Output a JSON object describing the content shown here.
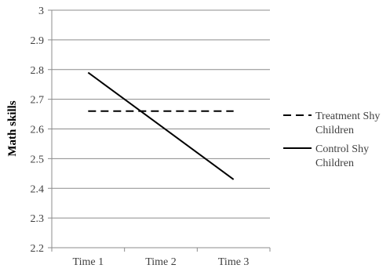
{
  "chart_data": {
    "type": "line",
    "categories": [
      "Time 1",
      "Time 2",
      "Time 3"
    ],
    "series": [
      {
        "name": "Treatment Shy Children",
        "legend_lines": [
          "Treatment Shy",
          "Children"
        ],
        "style": "dashed",
        "values": [
          2.66,
          2.66,
          2.66
        ]
      },
      {
        "name": "Control Shy Children",
        "legend_lines": [
          "Control Shy",
          "Children"
        ],
        "style": "solid",
        "values": [
          2.79,
          2.61,
          2.43
        ]
      }
    ],
    "ylabel": "Math skills",
    "xlabel": "",
    "ylim": [
      2.2,
      3.0
    ],
    "yticks": [
      "2.2",
      "2.3",
      "2.4",
      "2.5",
      "2.6",
      "2.7",
      "2.8",
      "2.9",
      "3"
    ],
    "grid": true,
    "legend_position": "right"
  }
}
